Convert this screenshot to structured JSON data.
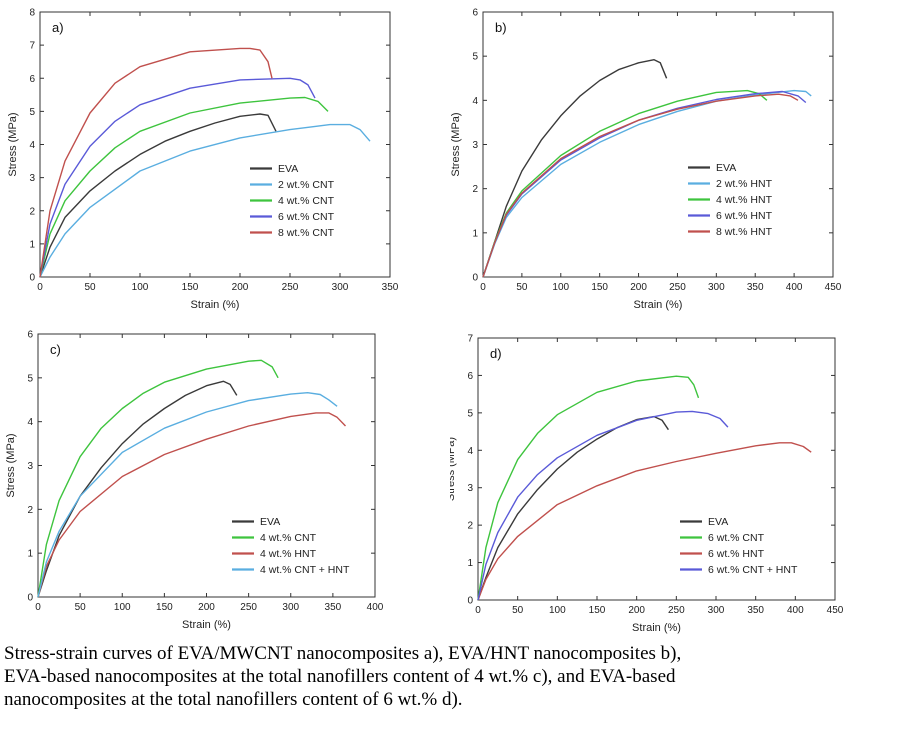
{
  "chart_data": [
    {
      "type": "line",
      "panel_label": "a)",
      "xlabel": "Strain (%)",
      "ylabel": "Stress (MPa)",
      "xlim": [
        0,
        350
      ],
      "ylim": [
        0,
        8
      ],
      "xticks": [
        0,
        50,
        100,
        150,
        200,
        250,
        300,
        350
      ],
      "yticks": [
        0,
        1,
        2,
        3,
        4,
        5,
        6,
        7,
        8
      ],
      "legend_position": "lower-right",
      "series": [
        {
          "name": "EVA",
          "color": "#3a3a3a",
          "x": [
            0,
            10,
            25,
            50,
            75,
            100,
            125,
            150,
            175,
            200,
            220,
            228,
            236
          ],
          "y": [
            0,
            0.9,
            1.8,
            2.6,
            3.2,
            3.7,
            4.1,
            4.4,
            4.65,
            4.85,
            4.92,
            4.88,
            4.4
          ]
        },
        {
          "name": "2 wt.% CNT",
          "color": "#5aaee0",
          "x": [
            0,
            10,
            25,
            50,
            100,
            150,
            200,
            250,
            290,
            310,
            320,
            330
          ],
          "y": [
            0,
            0.6,
            1.3,
            2.1,
            3.2,
            3.8,
            4.2,
            4.45,
            4.6,
            4.6,
            4.45,
            4.1
          ]
        },
        {
          "name": "4 wt.% CNT",
          "color": "#3ec43e",
          "x": [
            0,
            10,
            25,
            50,
            75,
            100,
            150,
            200,
            250,
            265,
            278,
            288
          ],
          "y": [
            0,
            1.3,
            2.3,
            3.2,
            3.9,
            4.4,
            4.95,
            5.25,
            5.4,
            5.42,
            5.3,
            5.0
          ]
        },
        {
          "name": "6 wt.% CNT",
          "color": "#5a5ad8",
          "x": [
            0,
            10,
            25,
            50,
            75,
            100,
            150,
            200,
            250,
            260,
            268,
            275
          ],
          "y": [
            0,
            1.6,
            2.8,
            3.95,
            4.7,
            5.2,
            5.7,
            5.95,
            6.0,
            5.95,
            5.8,
            5.4
          ]
        },
        {
          "name": "8 wt.% CNT",
          "color": "#c0504d",
          "x": [
            0,
            10,
            25,
            50,
            75,
            100,
            150,
            200,
            210,
            220,
            228,
            232
          ],
          "y": [
            0,
            2.0,
            3.5,
            4.95,
            5.85,
            6.35,
            6.8,
            6.9,
            6.9,
            6.85,
            6.5,
            6.0
          ]
        }
      ]
    },
    {
      "type": "line",
      "panel_label": "b)",
      "xlabel": "Strain (%)",
      "ylabel": "Stress (MPa)",
      "xlim": [
        0,
        450
      ],
      "ylim": [
        0,
        6
      ],
      "xticks": [
        0,
        50,
        100,
        150,
        200,
        250,
        300,
        350,
        400,
        450
      ],
      "yticks": [
        0,
        1,
        2,
        3,
        4,
        5,
        6
      ],
      "legend_position": "lower-right",
      "series": [
        {
          "name": "EVA",
          "color": "#3a3a3a",
          "x": [
            0,
            15,
            30,
            50,
            75,
            100,
            125,
            150,
            175,
            200,
            220,
            228,
            236
          ],
          "y": [
            0,
            0.8,
            1.6,
            2.4,
            3.1,
            3.65,
            4.1,
            4.45,
            4.7,
            4.85,
            4.92,
            4.85,
            4.5
          ]
        },
        {
          "name": "2 wt.% HNT",
          "color": "#5aaee0",
          "x": [
            0,
            15,
            30,
            50,
            100,
            150,
            200,
            250,
            300,
            350,
            400,
            415,
            422
          ],
          "y": [
            0,
            0.75,
            1.35,
            1.8,
            2.55,
            3.05,
            3.45,
            3.75,
            3.98,
            4.12,
            4.22,
            4.2,
            4.1
          ]
        },
        {
          "name": "4 wt.% HNT",
          "color": "#3ec43e",
          "x": [
            0,
            15,
            30,
            50,
            100,
            150,
            200,
            250,
            300,
            340,
            355,
            365
          ],
          "y": [
            0,
            0.8,
            1.45,
            1.95,
            2.75,
            3.3,
            3.7,
            3.98,
            4.18,
            4.22,
            4.15,
            4.0
          ]
        },
        {
          "name": "6 wt.% HNT",
          "color": "#5a5ad8",
          "x": [
            0,
            15,
            30,
            50,
            100,
            150,
            200,
            250,
            300,
            350,
            385,
            405,
            415
          ],
          "y": [
            0,
            0.78,
            1.4,
            1.88,
            2.65,
            3.15,
            3.55,
            3.82,
            4.02,
            4.15,
            4.2,
            4.1,
            3.95
          ]
        },
        {
          "name": "8 wt.% HNT",
          "color": "#c0504d",
          "x": [
            0,
            15,
            30,
            50,
            100,
            150,
            200,
            250,
            300,
            350,
            380,
            395,
            405
          ],
          "y": [
            0,
            0.78,
            1.42,
            1.9,
            2.68,
            3.18,
            3.55,
            3.8,
            3.98,
            4.1,
            4.14,
            4.1,
            4.0
          ]
        }
      ]
    },
    {
      "type": "line",
      "panel_label": "c)",
      "xlabel": "Strain (%)",
      "ylabel": "Stress (MPa)",
      "xlim": [
        0,
        400
      ],
      "ylim": [
        0,
        6
      ],
      "xticks": [
        0,
        50,
        100,
        150,
        200,
        250,
        300,
        350,
        400
      ],
      "yticks": [
        0,
        1,
        2,
        3,
        4,
        5,
        6
      ],
      "legend_position": "lower-right",
      "series": [
        {
          "name": "EVA",
          "color": "#3a3a3a",
          "x": [
            0,
            10,
            25,
            50,
            75,
            100,
            125,
            150,
            175,
            200,
            220,
            228,
            236
          ],
          "y": [
            0,
            0.6,
            1.4,
            2.3,
            2.95,
            3.5,
            3.95,
            4.3,
            4.6,
            4.82,
            4.92,
            4.85,
            4.6
          ]
        },
        {
          "name": "4 wt.% CNT",
          "color": "#3ec43e",
          "x": [
            0,
            10,
            25,
            50,
            75,
            100,
            125,
            150,
            200,
            250,
            265,
            278,
            285
          ],
          "y": [
            0,
            1.2,
            2.2,
            3.2,
            3.85,
            4.3,
            4.65,
            4.9,
            5.2,
            5.38,
            5.4,
            5.25,
            5.0
          ]
        },
        {
          "name": "4 wt.% HNT",
          "color": "#c0504d",
          "x": [
            0,
            10,
            25,
            50,
            100,
            150,
            200,
            250,
            300,
            330,
            345,
            355,
            365
          ],
          "y": [
            0,
            0.7,
            1.3,
            1.95,
            2.75,
            3.25,
            3.6,
            3.9,
            4.12,
            4.2,
            4.2,
            4.1,
            3.9
          ]
        },
        {
          "name": "4 wt.% CNT + HNT",
          "color": "#5aaee0",
          "x": [
            0,
            10,
            25,
            50,
            100,
            150,
            200,
            250,
            300,
            320,
            335,
            345,
            355
          ],
          "y": [
            0,
            0.8,
            1.5,
            2.3,
            3.3,
            3.85,
            4.22,
            4.48,
            4.63,
            4.66,
            4.62,
            4.5,
            4.35
          ]
        }
      ]
    },
    {
      "type": "line",
      "panel_label": "d)",
      "xlabel": "Strain (%)",
      "ylabel": "Stress (MPa)",
      "xlim": [
        0,
        450
      ],
      "ylim": [
        0,
        7
      ],
      "xticks": [
        0,
        50,
        100,
        150,
        200,
        250,
        300,
        350,
        400,
        450
      ],
      "yticks": [
        0,
        1,
        2,
        3,
        4,
        5,
        6,
        7
      ],
      "legend_position": "lower-right",
      "series": [
        {
          "name": "EVA",
          "color": "#3a3a3a",
          "x": [
            0,
            10,
            25,
            50,
            75,
            100,
            125,
            150,
            175,
            200,
            222,
            232,
            240
          ],
          "y": [
            0,
            0.6,
            1.4,
            2.3,
            2.95,
            3.5,
            3.95,
            4.3,
            4.6,
            4.82,
            4.9,
            4.8,
            4.55
          ]
        },
        {
          "name": "6 wt.% CNT",
          "color": "#3ec43e",
          "x": [
            0,
            10,
            25,
            50,
            75,
            100,
            150,
            200,
            250,
            265,
            272,
            278
          ],
          "y": [
            0,
            1.4,
            2.6,
            3.75,
            4.45,
            4.95,
            5.55,
            5.85,
            5.98,
            5.95,
            5.75,
            5.4
          ]
        },
        {
          "name": "6 wt.% HNT",
          "color": "#c0504d",
          "x": [
            0,
            10,
            25,
            50,
            100,
            150,
            200,
            250,
            300,
            350,
            380,
            395,
            410,
            420
          ],
          "y": [
            0,
            0.55,
            1.1,
            1.7,
            2.55,
            3.05,
            3.45,
            3.7,
            3.92,
            4.12,
            4.2,
            4.2,
            4.1,
            3.95
          ]
        },
        {
          "name": "6 wt.% CNT + HNT",
          "color": "#5a5ad8",
          "x": [
            0,
            10,
            25,
            50,
            75,
            100,
            150,
            200,
            250,
            270,
            290,
            305,
            315
          ],
          "y": [
            0,
            0.95,
            1.8,
            2.75,
            3.35,
            3.8,
            4.4,
            4.8,
            5.02,
            5.04,
            4.98,
            4.85,
            4.62
          ]
        }
      ]
    }
  ],
  "caption": {
    "line1": "Stress-strain curves of EVA/MWCNT nanocomposites a), EVA/HNT nanocomposites b),",
    "line2": "EVA-based nanocomposites at the total nanofillers content of 4 wt.% c), and EVA-based",
    "line3": "nanocomposites at the total nanofillers content of 6 wt.% d)."
  }
}
